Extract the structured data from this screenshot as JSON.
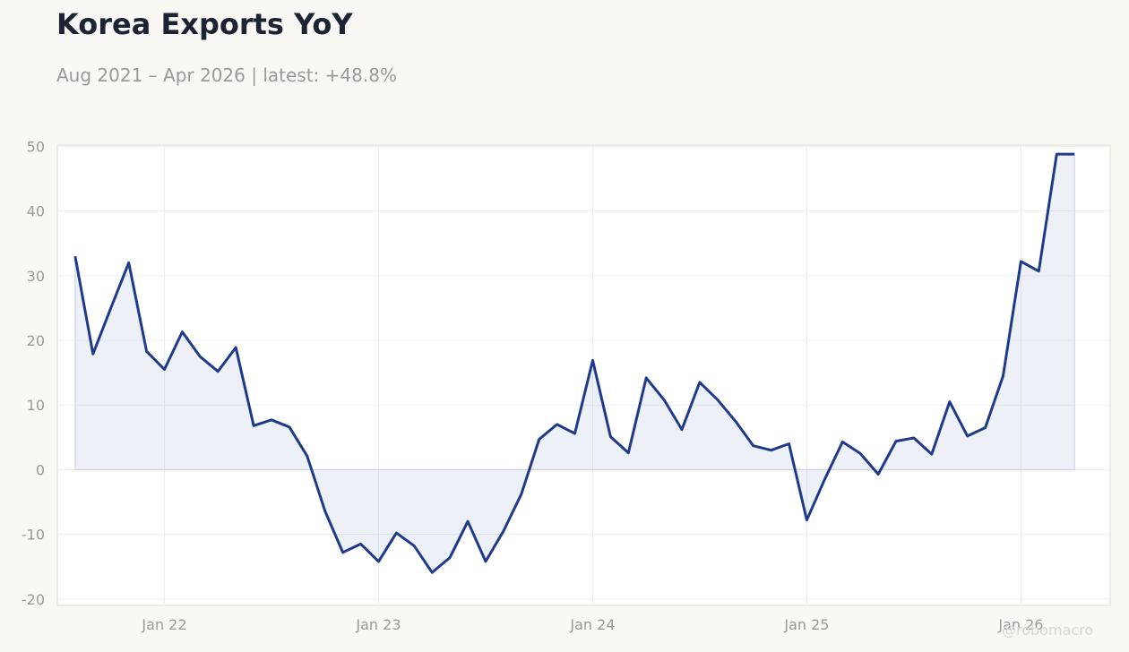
{
  "header": {
    "title": "Korea Exports YoY",
    "subtitle": "Aug 2021 – Apr 2026 | latest: +48.8%"
  },
  "watermark": "@robomacro",
  "colors": {
    "line": "#1f3a8a",
    "fill": "#1f3a8a",
    "background": "#f9f8f5",
    "plot_bg": "#ffffff",
    "grid": "#eeeeee",
    "tick_text": "#999999"
  },
  "chart_data": {
    "type": "area",
    "title": "Korea Exports YoY",
    "subtitle": "Aug 2021 – Apr 2026 | latest: +48.8%",
    "xlabel": "",
    "ylabel": "",
    "ylim": [
      -21,
      50.2
    ],
    "xlim": [
      "2021-07",
      "2026-06"
    ],
    "yticks": [
      -20,
      -10,
      0,
      10,
      20,
      30,
      40,
      50
    ],
    "xticks": [
      {
        "date": "2022-01",
        "label": "Jan 22"
      },
      {
        "date": "2023-01",
        "label": "Jan 23"
      },
      {
        "date": "2024-01",
        "label": "Jan 24"
      },
      {
        "date": "2025-01",
        "label": "Jan 25"
      },
      {
        "date": "2026-01",
        "label": "Jan 26"
      }
    ],
    "grid": true,
    "legend": "none",
    "series": [
      {
        "dates": [
          "2021-08",
          "2021-09",
          "2021-10",
          "2021-11",
          "2021-12",
          "2022-01",
          "2022-02",
          "2022-03",
          "2022-04",
          "2022-05",
          "2022-06",
          "2022-07",
          "2022-08",
          "2022-09",
          "2022-10",
          "2022-11",
          "2022-12",
          "2023-01",
          "2023-02",
          "2023-03",
          "2023-04",
          "2023-05",
          "2023-06",
          "2023-07",
          "2023-08",
          "2023-09",
          "2023-10",
          "2023-11",
          "2023-12",
          "2024-01",
          "2024-02",
          "2024-03",
          "2024-04",
          "2024-05",
          "2024-06",
          "2024-07",
          "2024-08",
          "2024-09",
          "2024-10",
          "2024-11",
          "2024-12",
          "2025-01",
          "2025-02",
          "2025-03",
          "2025-04",
          "2025-05",
          "2025-06",
          "2025-07",
          "2025-08",
          "2025-09",
          "2025-10",
          "2025-11",
          "2025-12",
          "2026-01",
          "2026-02",
          "2026-03",
          "2026-04"
        ],
        "values": [
          33.0,
          17.9,
          25.0,
          32.0,
          18.3,
          15.5,
          21.3,
          17.5,
          15.2,
          18.9,
          6.8,
          7.7,
          6.6,
          2.1,
          -6.4,
          -12.8,
          -11.5,
          -14.2,
          -9.8,
          -11.8,
          -15.9,
          -13.6,
          -8.0,
          -14.2,
          -9.5,
          -3.8,
          4.7,
          7.0,
          5.6,
          16.9,
          5.1,
          2.6,
          14.2,
          10.8,
          6.2,
          13.5,
          10.8,
          7.5,
          3.7,
          3.0,
          4.0,
          -7.8,
          -1.5,
          4.3,
          2.5,
          -0.7,
          4.4,
          4.9,
          2.4,
          10.5,
          5.2,
          6.5,
          14.5,
          32.2,
          30.7,
          48.8,
          48.8
        ]
      }
    ]
  }
}
